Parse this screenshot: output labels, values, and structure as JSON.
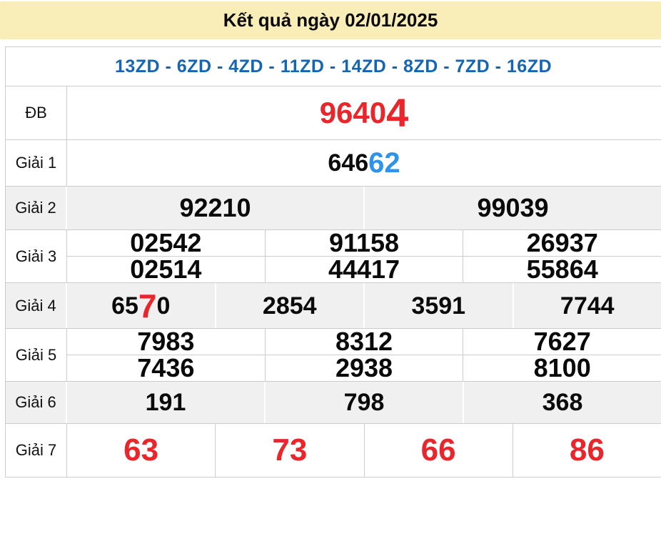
{
  "banner": {
    "title": "Kết quả ngày 02/01/2025"
  },
  "station_line": {
    "text": "13ZD - 6ZD - 4ZD - 11ZD - 14ZD - 8ZD - 7ZD - 16ZD"
  },
  "colors": {
    "banner_bg": "#faeeb8",
    "station_blue": "#1565b3",
    "highlight_red": "#e8262b",
    "highlight_blue": "#2e93ea",
    "alt_row_bg": "#f0f0f0",
    "border": "#cccccc"
  },
  "table": {
    "db": {
      "label": "ĐB",
      "value_main": "9640",
      "value_highlight": "4"
    },
    "g1": {
      "label": "Giải 1",
      "value_main": "646",
      "value_highlight": "62"
    },
    "g2": {
      "label": "Giải 2",
      "cells": [
        "92210",
        "99039"
      ]
    },
    "g3": {
      "label": "Giải 3",
      "rows": [
        [
          "02542",
          "91158",
          "26937"
        ],
        [
          "02514",
          "44417",
          "55864"
        ]
      ]
    },
    "g4": {
      "label": "Giải 4",
      "first_cell": {
        "pre": "65",
        "highlight": "7",
        "post": "0"
      },
      "cells": [
        "2854",
        "3591",
        "7744"
      ]
    },
    "g5": {
      "label": "Giải 5",
      "rows": [
        [
          "7983",
          "8312",
          "7627"
        ],
        [
          "7436",
          "2938",
          "8100"
        ]
      ]
    },
    "g6": {
      "label": "Giải 6",
      "cells": [
        "191",
        "798",
        "368"
      ]
    },
    "g7": {
      "label": "Giải 7",
      "cells": [
        "63",
        "73",
        "66",
        "86"
      ]
    }
  }
}
